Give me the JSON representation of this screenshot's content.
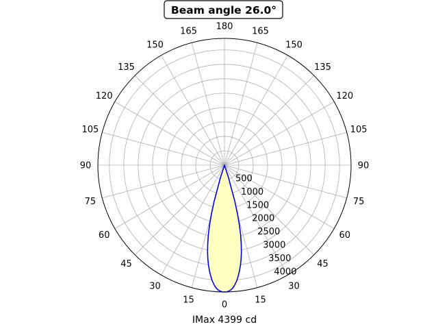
{
  "chart_data": {
    "type": "polar",
    "title": "Beam angle 26.0°",
    "xlabel": "IMax 4399 cd",
    "angle_tick_labels": [
      "0",
      "15",
      "30",
      "45",
      "60",
      "75",
      "90",
      "105",
      "120",
      "135",
      "150",
      "165",
      "180",
      "165",
      "150",
      "135",
      "120",
      "105",
      "90",
      "75",
      "60",
      "45",
      "30",
      "15"
    ],
    "radial_ticks": [
      500,
      1000,
      1500,
      2000,
      2500,
      3000,
      3500,
      4000
    ],
    "radial_tick_labels": [
      "500",
      "1000",
      "1500",
      "2000",
      "2500",
      "3000",
      "3500",
      "4000"
    ],
    "rlim": [
      0,
      4399
    ],
    "grid": true,
    "series": [
      {
        "values_angle_deg": [
          -20,
          -18,
          -16,
          -15,
          -14,
          -13,
          -12,
          -11,
          -10,
          -9,
          -8,
          -7,
          -6,
          -5,
          -4,
          -3,
          -2,
          -1,
          0,
          1,
          2,
          3,
          4,
          5,
          6,
          7,
          8,
          9,
          10,
          11,
          12,
          13,
          14,
          15,
          16,
          18,
          20
        ],
        "values_candela": [
          0,
          450,
          1300,
          1750,
          2150,
          2500,
          2800,
          3080,
          3320,
          3530,
          3720,
          3890,
          4040,
          4160,
          4260,
          4330,
          4370,
          4395,
          4399,
          4395,
          4370,
          4330,
          4260,
          4160,
          4040,
          3890,
          3720,
          3530,
          3320,
          3080,
          2800,
          2500,
          2150,
          1750,
          1300,
          450,
          0
        ]
      }
    ],
    "colors": {
      "line": "#0000ee",
      "fill": "#ffffc0",
      "grid": "#b0b0b0"
    }
  }
}
